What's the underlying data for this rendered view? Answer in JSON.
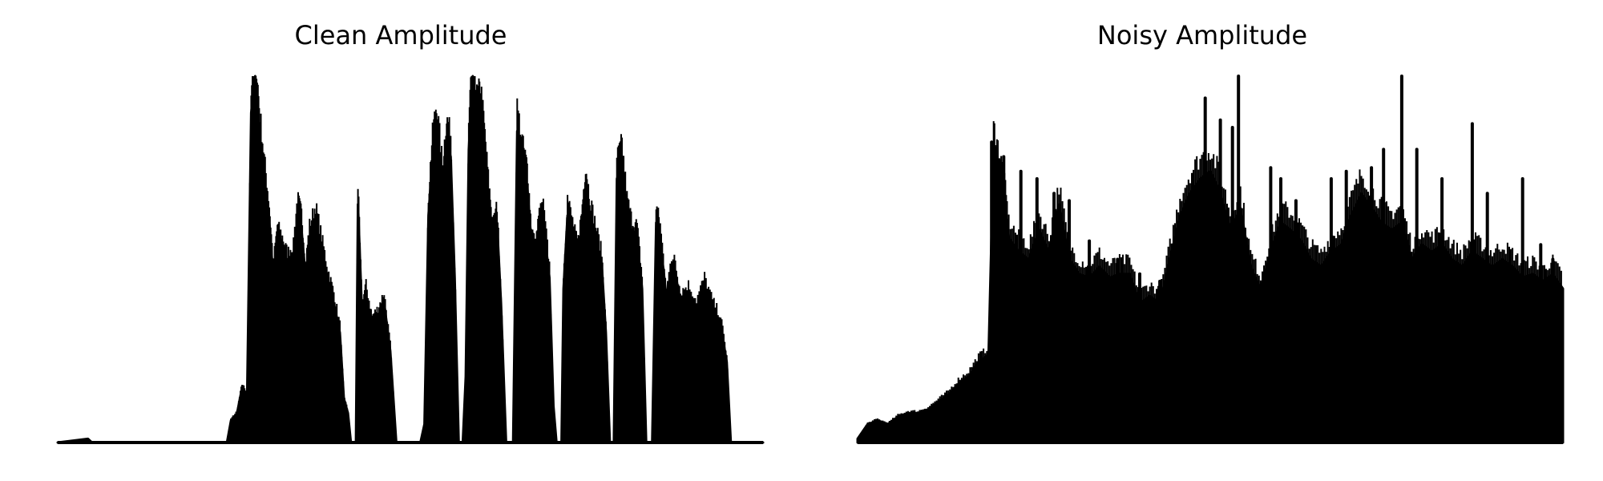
{
  "chart_data": [
    {
      "type": "area",
      "title": "Clean Amplitude",
      "xlabel": "",
      "ylabel": "",
      "axes_visible": false,
      "grid": false,
      "ylim": [
        0,
        1
      ],
      "color": "#000000",
      "envelope": [
        [
          0.0,
          0.0
        ],
        [
          0.03,
          0.01
        ],
        [
          0.034,
          0.0
        ],
        [
          0.168,
          0.0
        ],
        [
          0.172,
          0.06
        ],
        [
          0.178,
          0.08
        ],
        [
          0.183,
          0.15
        ],
        [
          0.188,
          0.12
        ],
        [
          0.192,
          0.9
        ],
        [
          0.196,
          1.0
        ],
        [
          0.2,
          0.85
        ],
        [
          0.205,
          0.72
        ],
        [
          0.21,
          0.6
        ],
        [
          0.214,
          0.45
        ],
        [
          0.218,
          0.55
        ],
        [
          0.223,
          0.52
        ],
        [
          0.228,
          0.48
        ],
        [
          0.234,
          0.5
        ],
        [
          0.238,
          0.62
        ],
        [
          0.242,
          0.58
        ],
        [
          0.246,
          0.45
        ],
        [
          0.25,
          0.55
        ],
        [
          0.256,
          0.6
        ],
        [
          0.262,
          0.52
        ],
        [
          0.268,
          0.44
        ],
        [
          0.274,
          0.38
        ],
        [
          0.28,
          0.3
        ],
        [
          0.284,
          0.12
        ],
        [
          0.288,
          0.08
        ],
        [
          0.291,
          0.0
        ],
        [
          0.296,
          0.0
        ],
        [
          0.298,
          0.65
        ],
        [
          0.302,
          0.35
        ],
        [
          0.306,
          0.4
        ],
        [
          0.312,
          0.32
        ],
        [
          0.318,
          0.34
        ],
        [
          0.324,
          0.38
        ],
        [
          0.33,
          0.25
        ],
        [
          0.336,
          0.0
        ],
        [
          0.36,
          0.0
        ],
        [
          0.364,
          0.05
        ],
        [
          0.368,
          0.62
        ],
        [
          0.372,
          0.78
        ],
        [
          0.376,
          0.86
        ],
        [
          0.382,
          0.7
        ],
        [
          0.386,
          0.82
        ],
        [
          0.39,
          0.78
        ],
        [
          0.394,
          0.45
        ],
        [
          0.398,
          0.0
        ],
        [
          0.402,
          0.0
        ],
        [
          0.405,
          0.18
        ],
        [
          0.408,
          0.8
        ],
        [
          0.412,
          1.0
        ],
        [
          0.416,
          0.88
        ],
        [
          0.42,
          0.9
        ],
        [
          0.424,
          0.78
        ],
        [
          0.428,
          0.65
        ],
        [
          0.432,
          0.55
        ],
        [
          0.436,
          0.6
        ],
        [
          0.44,
          0.38
        ],
        [
          0.445,
          0.0
        ],
        [
          0.452,
          0.0
        ],
        [
          0.456,
          0.85
        ],
        [
          0.462,
          0.75
        ],
        [
          0.466,
          0.7
        ],
        [
          0.47,
          0.55
        ],
        [
          0.474,
          0.5
        ],
        [
          0.478,
          0.58
        ],
        [
          0.482,
          0.6
        ],
        [
          0.488,
          0.45
        ],
        [
          0.492,
          0.1
        ],
        [
          0.495,
          0.0
        ],
        [
          0.5,
          0.0
        ],
        [
          0.502,
          0.42
        ],
        [
          0.506,
          0.62
        ],
        [
          0.512,
          0.55
        ],
        [
          0.516,
          0.5
        ],
        [
          0.52,
          0.58
        ],
        [
          0.524,
          0.7
        ],
        [
          0.528,
          0.62
        ],
        [
          0.534,
          0.55
        ],
        [
          0.54,
          0.48
        ],
        [
          0.544,
          0.3
        ],
        [
          0.548,
          0.0
        ],
        [
          0.552,
          0.0
        ],
        [
          0.555,
          0.72
        ],
        [
          0.56,
          0.76
        ],
        [
          0.565,
          0.62
        ],
        [
          0.57,
          0.56
        ],
        [
          0.575,
          0.55
        ],
        [
          0.58,
          0.42
        ],
        [
          0.584,
          0.0
        ],
        [
          0.59,
          0.0
        ],
        [
          0.594,
          0.6
        ],
        [
          0.598,
          0.55
        ],
        [
          0.604,
          0.4
        ],
        [
          0.612,
          0.48
        ],
        [
          0.618,
          0.38
        ],
        [
          0.626,
          0.4
        ],
        [
          0.634,
          0.36
        ],
        [
          0.642,
          0.42
        ],
        [
          0.65,
          0.36
        ],
        [
          0.658,
          0.32
        ],
        [
          0.664,
          0.22
        ],
        [
          0.668,
          0.0
        ],
        [
          0.7,
          0.0
        ]
      ]
    },
    {
      "type": "area",
      "title": "Noisy Amplitude",
      "xlabel": "",
      "ylabel": "",
      "axes_visible": false,
      "grid": false,
      "ylim": [
        0,
        1
      ],
      "color": "#000000",
      "envelope": [
        [
          0.0,
          0.01
        ],
        [
          0.01,
          0.05
        ],
        [
          0.02,
          0.06
        ],
        [
          0.03,
          0.05
        ],
        [
          0.04,
          0.07
        ],
        [
          0.05,
          0.08
        ],
        [
          0.06,
          0.08
        ],
        [
          0.07,
          0.09
        ],
        [
          0.08,
          0.11
        ],
        [
          0.09,
          0.13
        ],
        [
          0.1,
          0.16
        ],
        [
          0.11,
          0.18
        ],
        [
          0.12,
          0.22
        ],
        [
          0.13,
          0.24
        ],
        [
          0.135,
          0.8
        ],
        [
          0.14,
          0.74
        ],
        [
          0.145,
          0.68
        ],
        [
          0.15,
          0.56
        ],
        [
          0.16,
          0.52
        ],
        [
          0.17,
          0.5
        ],
        [
          0.18,
          0.58
        ],
        [
          0.19,
          0.52
        ],
        [
          0.2,
          0.65
        ],
        [
          0.21,
          0.5
        ],
        [
          0.22,
          0.46
        ],
        [
          0.23,
          0.45
        ],
        [
          0.24,
          0.48
        ],
        [
          0.25,
          0.45
        ],
        [
          0.26,
          0.46
        ],
        [
          0.27,
          0.46
        ],
        [
          0.28,
          0.38
        ],
        [
          0.29,
          0.4
        ],
        [
          0.3,
          0.38
        ],
        [
          0.31,
          0.5
        ],
        [
          0.32,
          0.62
        ],
        [
          0.33,
          0.68
        ],
        [
          0.34,
          0.72
        ],
        [
          0.35,
          0.74
        ],
        [
          0.36,
          0.68
        ],
        [
          0.37,
          0.58
        ],
        [
          0.38,
          0.64
        ],
        [
          0.39,
          0.48
        ],
        [
          0.4,
          0.42
        ],
        [
          0.41,
          0.52
        ],
        [
          0.42,
          0.6
        ],
        [
          0.43,
          0.58
        ],
        [
          0.44,
          0.55
        ],
        [
          0.45,
          0.5
        ],
        [
          0.46,
          0.48
        ],
        [
          0.47,
          0.52
        ],
        [
          0.48,
          0.54
        ],
        [
          0.49,
          0.62
        ],
        [
          0.5,
          0.68
        ],
        [
          0.51,
          0.64
        ],
        [
          0.52,
          0.6
        ],
        [
          0.53,
          0.58
        ],
        [
          0.54,
          0.6
        ],
        [
          0.55,
          0.5
        ],
        [
          0.56,
          0.54
        ],
        [
          0.57,
          0.52
        ],
        [
          0.58,
          0.54
        ],
        [
          0.59,
          0.5
        ],
        [
          0.6,
          0.48
        ],
        [
          0.61,
          0.52
        ],
        [
          0.62,
          0.5
        ],
        [
          0.63,
          0.48
        ],
        [
          0.64,
          0.5
        ],
        [
          0.65,
          0.48
        ],
        [
          0.66,
          0.45
        ],
        [
          0.67,
          0.46
        ],
        [
          0.68,
          0.44
        ],
        [
          0.69,
          0.46
        ],
        [
          0.7,
          0.42
        ]
      ],
      "spikes": [
        [
          0.133,
          0.82
        ],
        [
          0.145,
          0.78
        ],
        [
          0.162,
          0.74
        ],
        [
          0.178,
          0.72
        ],
        [
          0.195,
          0.68
        ],
        [
          0.21,
          0.66
        ],
        [
          0.23,
          0.55
        ],
        [
          0.258,
          0.5
        ],
        [
          0.28,
          0.46
        ],
        [
          0.3,
          0.44
        ],
        [
          0.345,
          0.94
        ],
        [
          0.36,
          0.88
        ],
        [
          0.372,
          0.86
        ],
        [
          0.378,
          1.0
        ],
        [
          0.41,
          0.75
        ],
        [
          0.42,
          0.72
        ],
        [
          0.435,
          0.66
        ],
        [
          0.47,
          0.72
        ],
        [
          0.485,
          0.74
        ],
        [
          0.51,
          0.75
        ],
        [
          0.522,
          0.8
        ],
        [
          0.54,
          1.0
        ],
        [
          0.555,
          0.8
        ],
        [
          0.58,
          0.72
        ],
        [
          0.61,
          0.87
        ],
        [
          0.625,
          0.68
        ],
        [
          0.66,
          0.72
        ],
        [
          0.678,
          0.54
        ],
        [
          0.69,
          0.5
        ]
      ]
    }
  ]
}
